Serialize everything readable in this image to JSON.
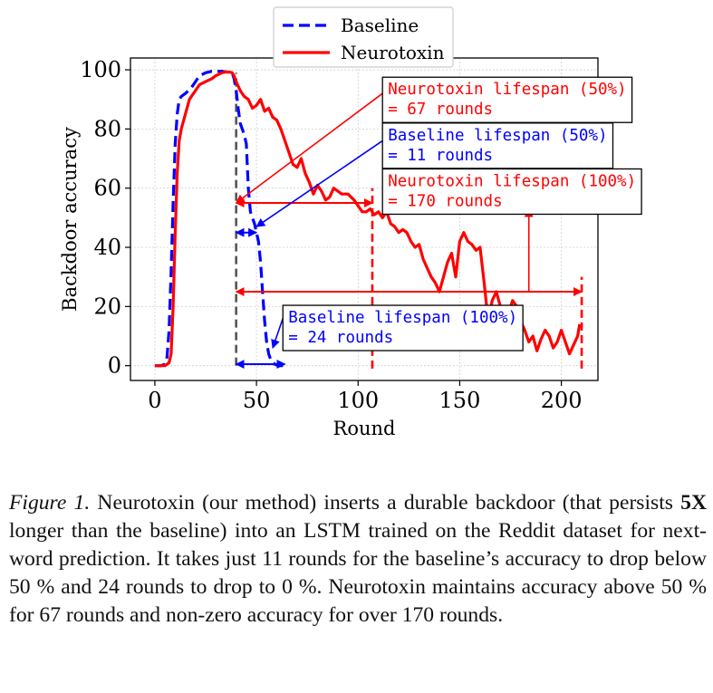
{
  "chart_data": {
    "type": "line",
    "xlabel": "Round",
    "ylabel": "Backdoor accuracy",
    "xlim": [
      -12,
      218
    ],
    "ylim": [
      -5,
      104
    ],
    "xticks": [
      0,
      50,
      100,
      150,
      200
    ],
    "yticks": [
      0,
      20,
      40,
      60,
      80,
      100
    ],
    "grid": true,
    "legend_position": "top-center",
    "series": [
      {
        "name": "Baseline",
        "color": "#0000ff",
        "style": "dashed",
        "x": [
          0,
          3,
          5,
          6,
          7,
          8,
          9,
          10,
          11,
          12,
          13,
          15,
          18,
          20,
          22,
          25,
          28,
          30,
          33,
          35,
          37,
          38,
          39,
          40,
          41,
          42,
          43,
          44,
          45,
          46,
          47,
          48,
          49,
          50,
          51,
          52,
          53,
          54,
          55,
          56,
          57,
          58,
          59,
          60,
          61,
          62,
          63
        ],
        "y": [
          0,
          0,
          0.5,
          3,
          12,
          32,
          55,
          75,
          85,
          90,
          91,
          92,
          94,
          96,
          98,
          99,
          99.5,
          99.5,
          99.5,
          99.3,
          99.2,
          99,
          97,
          93,
          87,
          82,
          80,
          78,
          75,
          60,
          52,
          50,
          48,
          45,
          42,
          35,
          25,
          15,
          8,
          4,
          2,
          1,
          0.5,
          0.2,
          0,
          0,
          0
        ]
      },
      {
        "name": "Neurotoxin",
        "color": "#ff0000",
        "style": "solid",
        "x": [
          0,
          5,
          7,
          8,
          9,
          10,
          11,
          12,
          13,
          15,
          17,
          20,
          22,
          25,
          28,
          30,
          33,
          35,
          37,
          38,
          39,
          40,
          42,
          44,
          46,
          48,
          50,
          52,
          54,
          56,
          58,
          60,
          62,
          64,
          66,
          68,
          70,
          72,
          74,
          76,
          78,
          80,
          82,
          84,
          86,
          88,
          90,
          92,
          95,
          98,
          100,
          102,
          104,
          106,
          108,
          110,
          112,
          114,
          116,
          118,
          120,
          122,
          124,
          126,
          128,
          130,
          132,
          134,
          136,
          138,
          140,
          142,
          144,
          146,
          148,
          150,
          152,
          154,
          156,
          158,
          160,
          162,
          164,
          166,
          168,
          170,
          172,
          174,
          176,
          178,
          180,
          182,
          184,
          186,
          188,
          190,
          192,
          194,
          196,
          198,
          200,
          202,
          204,
          206,
          208,
          209
        ],
        "y": [
          0,
          0,
          1,
          4,
          20,
          45,
          65,
          76,
          80,
          85,
          90,
          93,
          95,
          96,
          97,
          98,
          99,
          99.3,
          99.2,
          99,
          98,
          96,
          93,
          91,
          90,
          87,
          88,
          90,
          86,
          87,
          84,
          83,
          80,
          76,
          72,
          68,
          67,
          70,
          65,
          62,
          58,
          61,
          59,
          56,
          57,
          60,
          59,
          58,
          58,
          56,
          54,
          52,
          52,
          53,
          51,
          52,
          50,
          52,
          48,
          47,
          45,
          46,
          45,
          42,
          40,
          41,
          36,
          33,
          30,
          28,
          25,
          30,
          35,
          38,
          30,
          42,
          45,
          42,
          41,
          39,
          40,
          28,
          15,
          22,
          25,
          20,
          16,
          18,
          22,
          20,
          15,
          12,
          8,
          10,
          5,
          9,
          12,
          10,
          6,
          8,
          12,
          8,
          4,
          7,
          10,
          14
        ]
      }
    ],
    "vlines": [
      {
        "x": 40,
        "color": "#555555",
        "style": "dashed",
        "from_y": 0,
        "to_y": 99
      },
      {
        "x": 107,
        "color": "#ff0000",
        "style": "dashed",
        "from_y": -1,
        "to_y": 60
      },
      {
        "x": 210,
        "color": "#ff0000",
        "style": "dashed",
        "from_y": -1,
        "to_y": 30
      }
    ],
    "annotations": [
      {
        "lines": [
          "Neurotoxin lifespan (50%)",
          " = 67 rounds"
        ],
        "color": "#ff0000",
        "box_x": 112,
        "box_y": 97.5,
        "arrow": {
          "type": "line",
          "from": [
            112,
            92
          ],
          "to": [
            40,
            55
          ]
        }
      },
      {
        "lines": [
          "Baseline lifespan (50%)",
          " = 11 rounds"
        ],
        "color": "#0000ff",
        "box_x": 112,
        "box_y": 82,
        "arrow": {
          "type": "line",
          "from": [
            112,
            76
          ],
          "to": [
            50,
            47
          ]
        }
      },
      {
        "lines": [
          "Neurotoxin lifespan (100%)",
          " = 170 rounds"
        ],
        "color": "#ff0000",
        "box_x": 112,
        "box_y": 66.5,
        "arrow": {
          "type": "line",
          "from": [
            184,
            25
          ],
          "to": [
            184,
            53
          ]
        }
      },
      {
        "lines": [
          "Baseline lifespan (100%)",
          " = 24 rounds"
        ],
        "color": "#0000ff",
        "box_x": 63,
        "box_y": 20.4,
        "arrow": {
          "type": "line",
          "from": [
            63,
            16
          ],
          "to": [
            58,
            6
          ]
        }
      }
    ],
    "spans": [
      {
        "x1": 40,
        "x2": 107,
        "y": 55,
        "color": "#ff0000"
      },
      {
        "x1": 40,
        "x2": 50,
        "y": 45,
        "color": "#0000ff"
      },
      {
        "x1": 40,
        "x2": 210,
        "y": 25,
        "color": "#ff0000"
      },
      {
        "x1": 40,
        "x2": 64,
        "y": 0.5,
        "color": "#0000ff"
      }
    ]
  },
  "caption": {
    "label": "Figure 1.",
    "before_bold": " Neurotoxin (our method) inserts a durable backdoor (that persists ",
    "bold": "5X",
    "after_bold": " longer than the baseline) into an LSTM trained on the Reddit dataset for next-word prediction. It takes just 11 rounds for the baseline’s accuracy to drop below 50 % and 24 rounds to drop to 0 %. Neurotoxin maintains accuracy above 50 % for 67 rounds and non-zero accuracy for over 170 rounds."
  }
}
